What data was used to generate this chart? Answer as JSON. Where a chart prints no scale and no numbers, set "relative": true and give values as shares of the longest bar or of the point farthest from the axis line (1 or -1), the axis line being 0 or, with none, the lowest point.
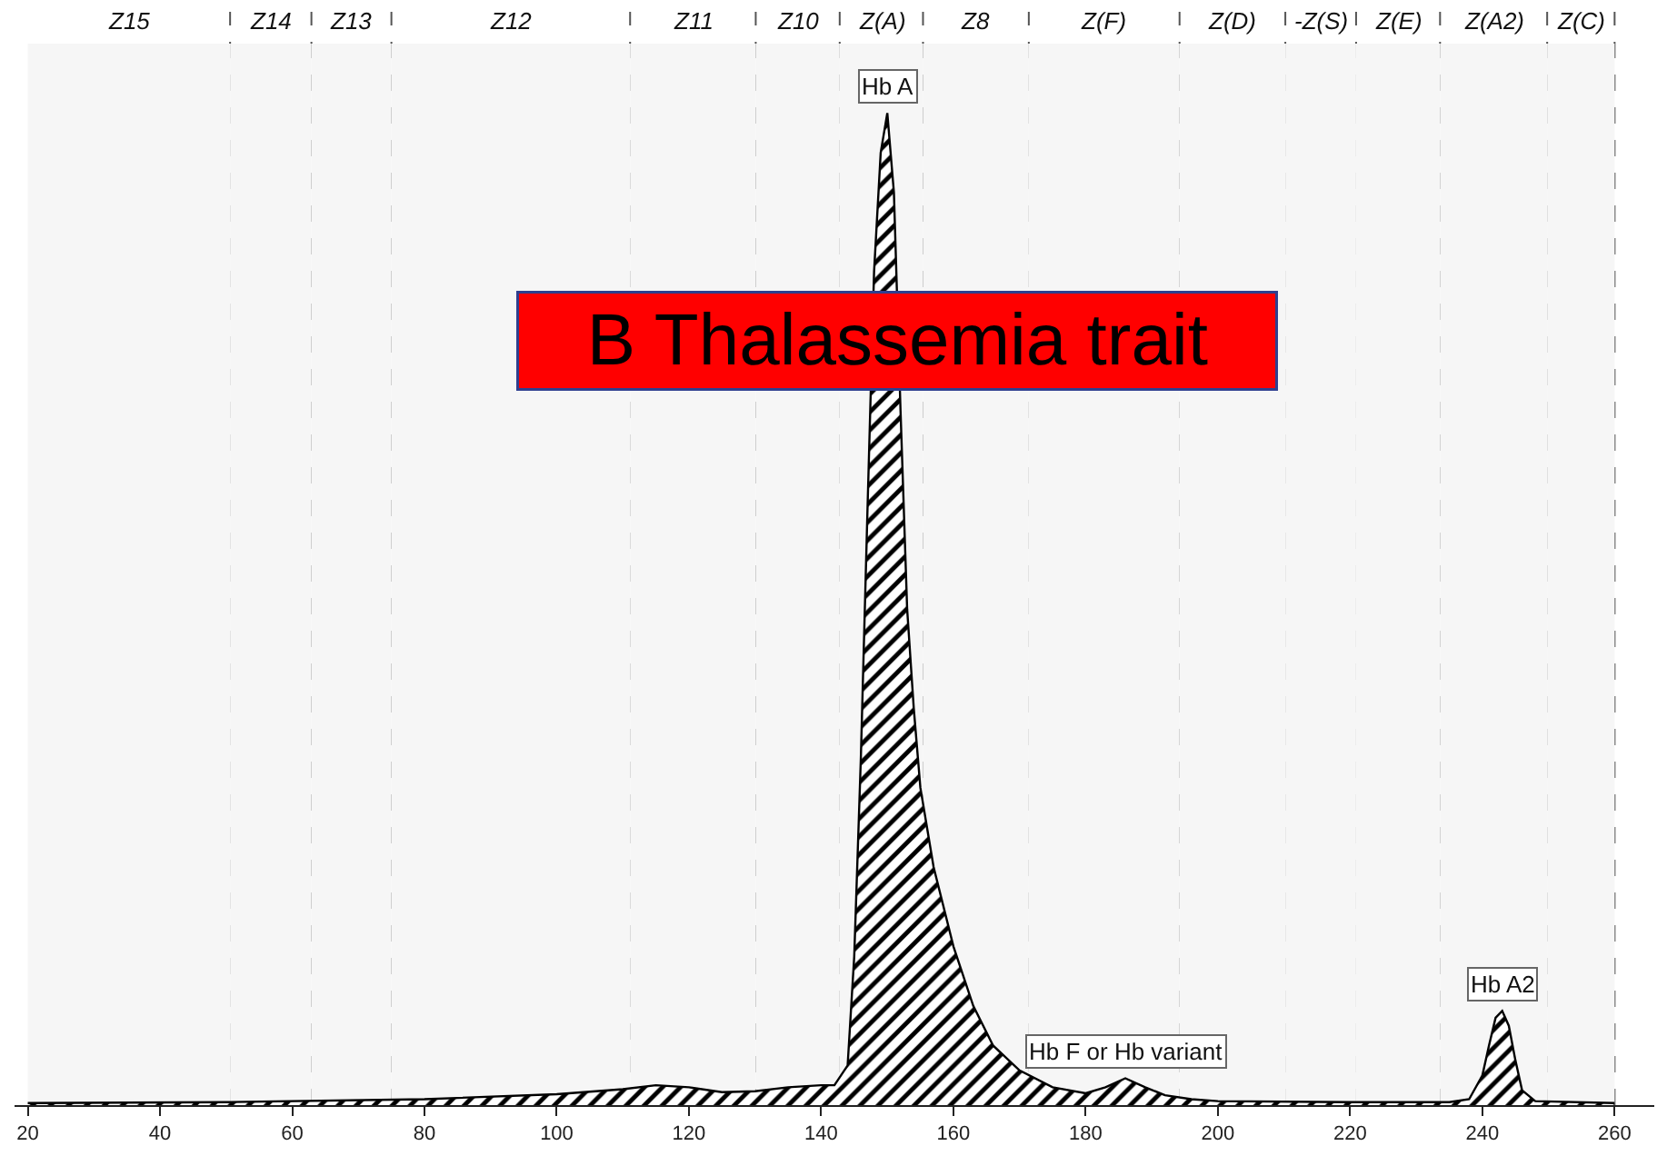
{
  "chart_data": {
    "type": "area",
    "relative": true,
    "x": [
      20,
      50,
      80,
      100,
      110,
      115,
      120,
      125,
      130,
      135,
      140,
      142,
      144,
      145,
      146,
      147,
      148,
      149,
      150,
      151,
      152,
      153,
      154,
      155,
      157,
      160,
      163,
      166,
      170,
      175,
      180,
      183,
      186,
      189,
      192,
      196,
      200,
      220,
      235,
      238,
      240,
      241,
      242,
      243,
      244,
      245,
      246,
      248,
      260
    ],
    "series": [
      {
        "color": "#000000",
        "values": [
          0.002,
          0.003,
          0.006,
          0.011,
          0.016,
          0.02,
          0.018,
          0.013,
          0.014,
          0.018,
          0.02,
          0.02,
          0.04,
          0.15,
          0.35,
          0.6,
          0.84,
          0.96,
          1,
          0.92,
          0.7,
          0.5,
          0.4,
          0.32,
          0.24,
          0.16,
          0.1,
          0.06,
          0.035,
          0.018,
          0.012,
          0.018,
          0.027,
          0.018,
          0.01,
          0.006,
          0.004,
          0.003,
          0.003,
          0.006,
          0.03,
          0.06,
          0.088,
          0.095,
          0.08,
          0.045,
          0.015,
          0.004,
          0.002
        ]
      }
    ],
    "xlim": [
      18,
      266
    ],
    "xticks": [
      20,
      40,
      60,
      80,
      100,
      120,
      140,
      160,
      180,
      200,
      220,
      240,
      260
    ],
    "grid": false,
    "ref_lines": [
      {
        "axis": "x",
        "value": 50.6,
        "line_style": "dashed",
        "color": "#555555"
      },
      {
        "axis": "x",
        "value": 62.9,
        "line_style": "dashed",
        "color": "#555555"
      },
      {
        "axis": "x",
        "value": 75,
        "line_style": "dashed",
        "color": "#555555"
      },
      {
        "axis": "x",
        "value": 111.1,
        "line_style": "dashed",
        "color": "#555555"
      },
      {
        "axis": "x",
        "value": 130.1,
        "line_style": "dashed",
        "color": "#555555"
      },
      {
        "axis": "x",
        "value": 142.8,
        "line_style": "dashed",
        "color": "#555555"
      },
      {
        "axis": "x",
        "value": 155.4,
        "line_style": "dashed",
        "color": "#555555"
      },
      {
        "axis": "x",
        "value": 171.4,
        "line_style": "dashed",
        "color": "#555555"
      },
      {
        "axis": "x",
        "value": 194.2,
        "line_style": "dashed",
        "color": "#555555"
      },
      {
        "axis": "x",
        "value": 210.2,
        "line_style": "dashed",
        "color": "#555555"
      },
      {
        "axis": "x",
        "value": 220.9,
        "line_style": "dashed",
        "color": "#555555"
      },
      {
        "axis": "x",
        "value": 233.6,
        "line_style": "dashed",
        "color": "#555555"
      },
      {
        "axis": "x",
        "value": 249.8,
        "line_style": "dashed",
        "color": "#555555"
      },
      {
        "axis": "x",
        "value": 260,
        "line_style": "dashed",
        "color": "#555555"
      }
    ],
    "bands": [
      {
        "axis": "x",
        "from": 20,
        "to": 50.6,
        "label": "Z15",
        "color": "#f6f6f6"
      },
      {
        "axis": "x",
        "from": 50.6,
        "to": 62.9,
        "label": "Z14",
        "color": "#f6f6f6"
      },
      {
        "axis": "x",
        "from": 62.9,
        "to": 75,
        "label": "Z13",
        "color": "#f6f6f6"
      },
      {
        "axis": "x",
        "from": 75,
        "to": 111.1,
        "label": "Z12",
        "color": "#f6f6f6"
      },
      {
        "axis": "x",
        "from": 111.1,
        "to": 130.1,
        "label": "Z11",
        "color": "#f6f6f6"
      },
      {
        "axis": "x",
        "from": 130.1,
        "to": 142.8,
        "label": "Z10",
        "color": "#f6f6f6"
      },
      {
        "axis": "x",
        "from": 142.8,
        "to": 155.4,
        "label": "Z(A)",
        "color": "#f6f6f6"
      },
      {
        "axis": "x",
        "from": 155.4,
        "to": 171.4,
        "label": "Z8",
        "color": "#f6f6f6"
      },
      {
        "axis": "x",
        "from": 171.4,
        "to": 194.2,
        "label": "Z(F)",
        "color": "#f6f6f6"
      },
      {
        "axis": "x",
        "from": 194.2,
        "to": 210.2,
        "label": "Z(D)",
        "color": "#f6f6f6"
      },
      {
        "axis": "x",
        "from": 210.2,
        "to": 220.9,
        "label": "-Z(S)",
        "color": "#f6f6f6"
      },
      {
        "axis": "x",
        "from": 220.9,
        "to": 233.6,
        "label": "Z(E)",
        "color": "#f6f6f6"
      },
      {
        "axis": "x",
        "from": 233.6,
        "to": 249.8,
        "label": "Z(A2)",
        "color": "#f6f6f6"
      },
      {
        "axis": "x",
        "from": 249.8,
        "to": 260,
        "label": "Z(C)",
        "color": "#f6f6f6"
      }
    ],
    "annotations": [
      {
        "text": "Hb A",
        "x": 150,
        "y": 1
      },
      {
        "text": "Hb F or Hb variant",
        "x": 186,
        "y": 0.027
      },
      {
        "text": "Hb A2",
        "x": 243,
        "y": 0.095
      },
      "B Thalassemia trait"
    ]
  }
}
